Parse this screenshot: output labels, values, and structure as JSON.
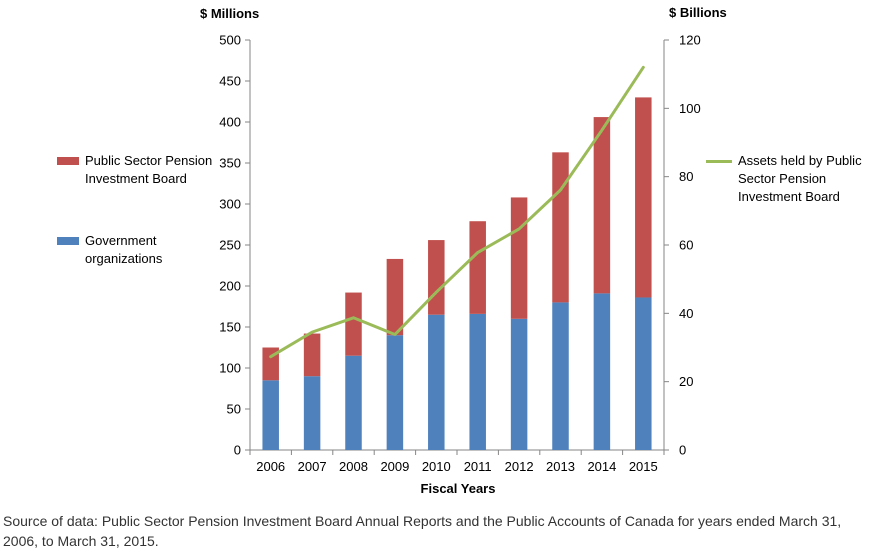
{
  "chart_data": {
    "type": "bar",
    "stacked": true,
    "categories": [
      "2006",
      "2007",
      "2008",
      "2009",
      "2010",
      "2011",
      "2012",
      "2013",
      "2014",
      "2015"
    ],
    "xlabel": "Fiscal Years",
    "y_left_unit": "$ Millions",
    "y_right_unit": "$ Billions",
    "ylim_left": [
      0,
      500
    ],
    "ylim_right": [
      0,
      120
    ],
    "y_left_ticks": [
      0,
      50,
      100,
      150,
      200,
      250,
      300,
      350,
      400,
      450,
      500
    ],
    "y_right_ticks": [
      0,
      20,
      40,
      60,
      80,
      100,
      120
    ],
    "grid": false,
    "series": [
      {
        "name": "Government organizations",
        "axis": "left",
        "kind": "bar",
        "color": "#4f81bd",
        "values": [
          85,
          90,
          115,
          140,
          165,
          166,
          160,
          180,
          191,
          186
        ]
      },
      {
        "name": "Public Sector Pension Investment Board",
        "axis": "left",
        "kind": "bar",
        "color": "#c0504d",
        "values": [
          40,
          52,
          77,
          93,
          91,
          113,
          148,
          183,
          215,
          244
        ]
      },
      {
        "name": "Assets held by Public Sector Pension Investment Board",
        "axis": "right",
        "kind": "line",
        "color": "#9bbb59",
        "values": [
          27.3,
          34.5,
          38.7,
          33.8,
          46.2,
          57.8,
          64.7,
          76.1,
          93.6,
          112
        ]
      }
    ],
    "legend": [
      {
        "text": "Public Sector Pension Investment Board",
        "placement": "left"
      },
      {
        "text": "Government organizations",
        "placement": "left"
      },
      {
        "text": "Assets held by Public Sector Pension Investment Board",
        "placement": "right"
      }
    ]
  },
  "legend_labels": {
    "pspib_line1": "Public Sector Pension",
    "pspib_line2": "Investment Board",
    "gov_line1": "Government",
    "gov_line2": "organizations",
    "assets_line1": "Assets held by Public",
    "assets_line2": "Sector Pension",
    "assets_line3": "Investment Board"
  },
  "source_note": "Source of data: Public Sector Pension Investment Board Annual Reports and the Public Accounts of Canada for years ended March 31, 2006, to March 31, 2015."
}
